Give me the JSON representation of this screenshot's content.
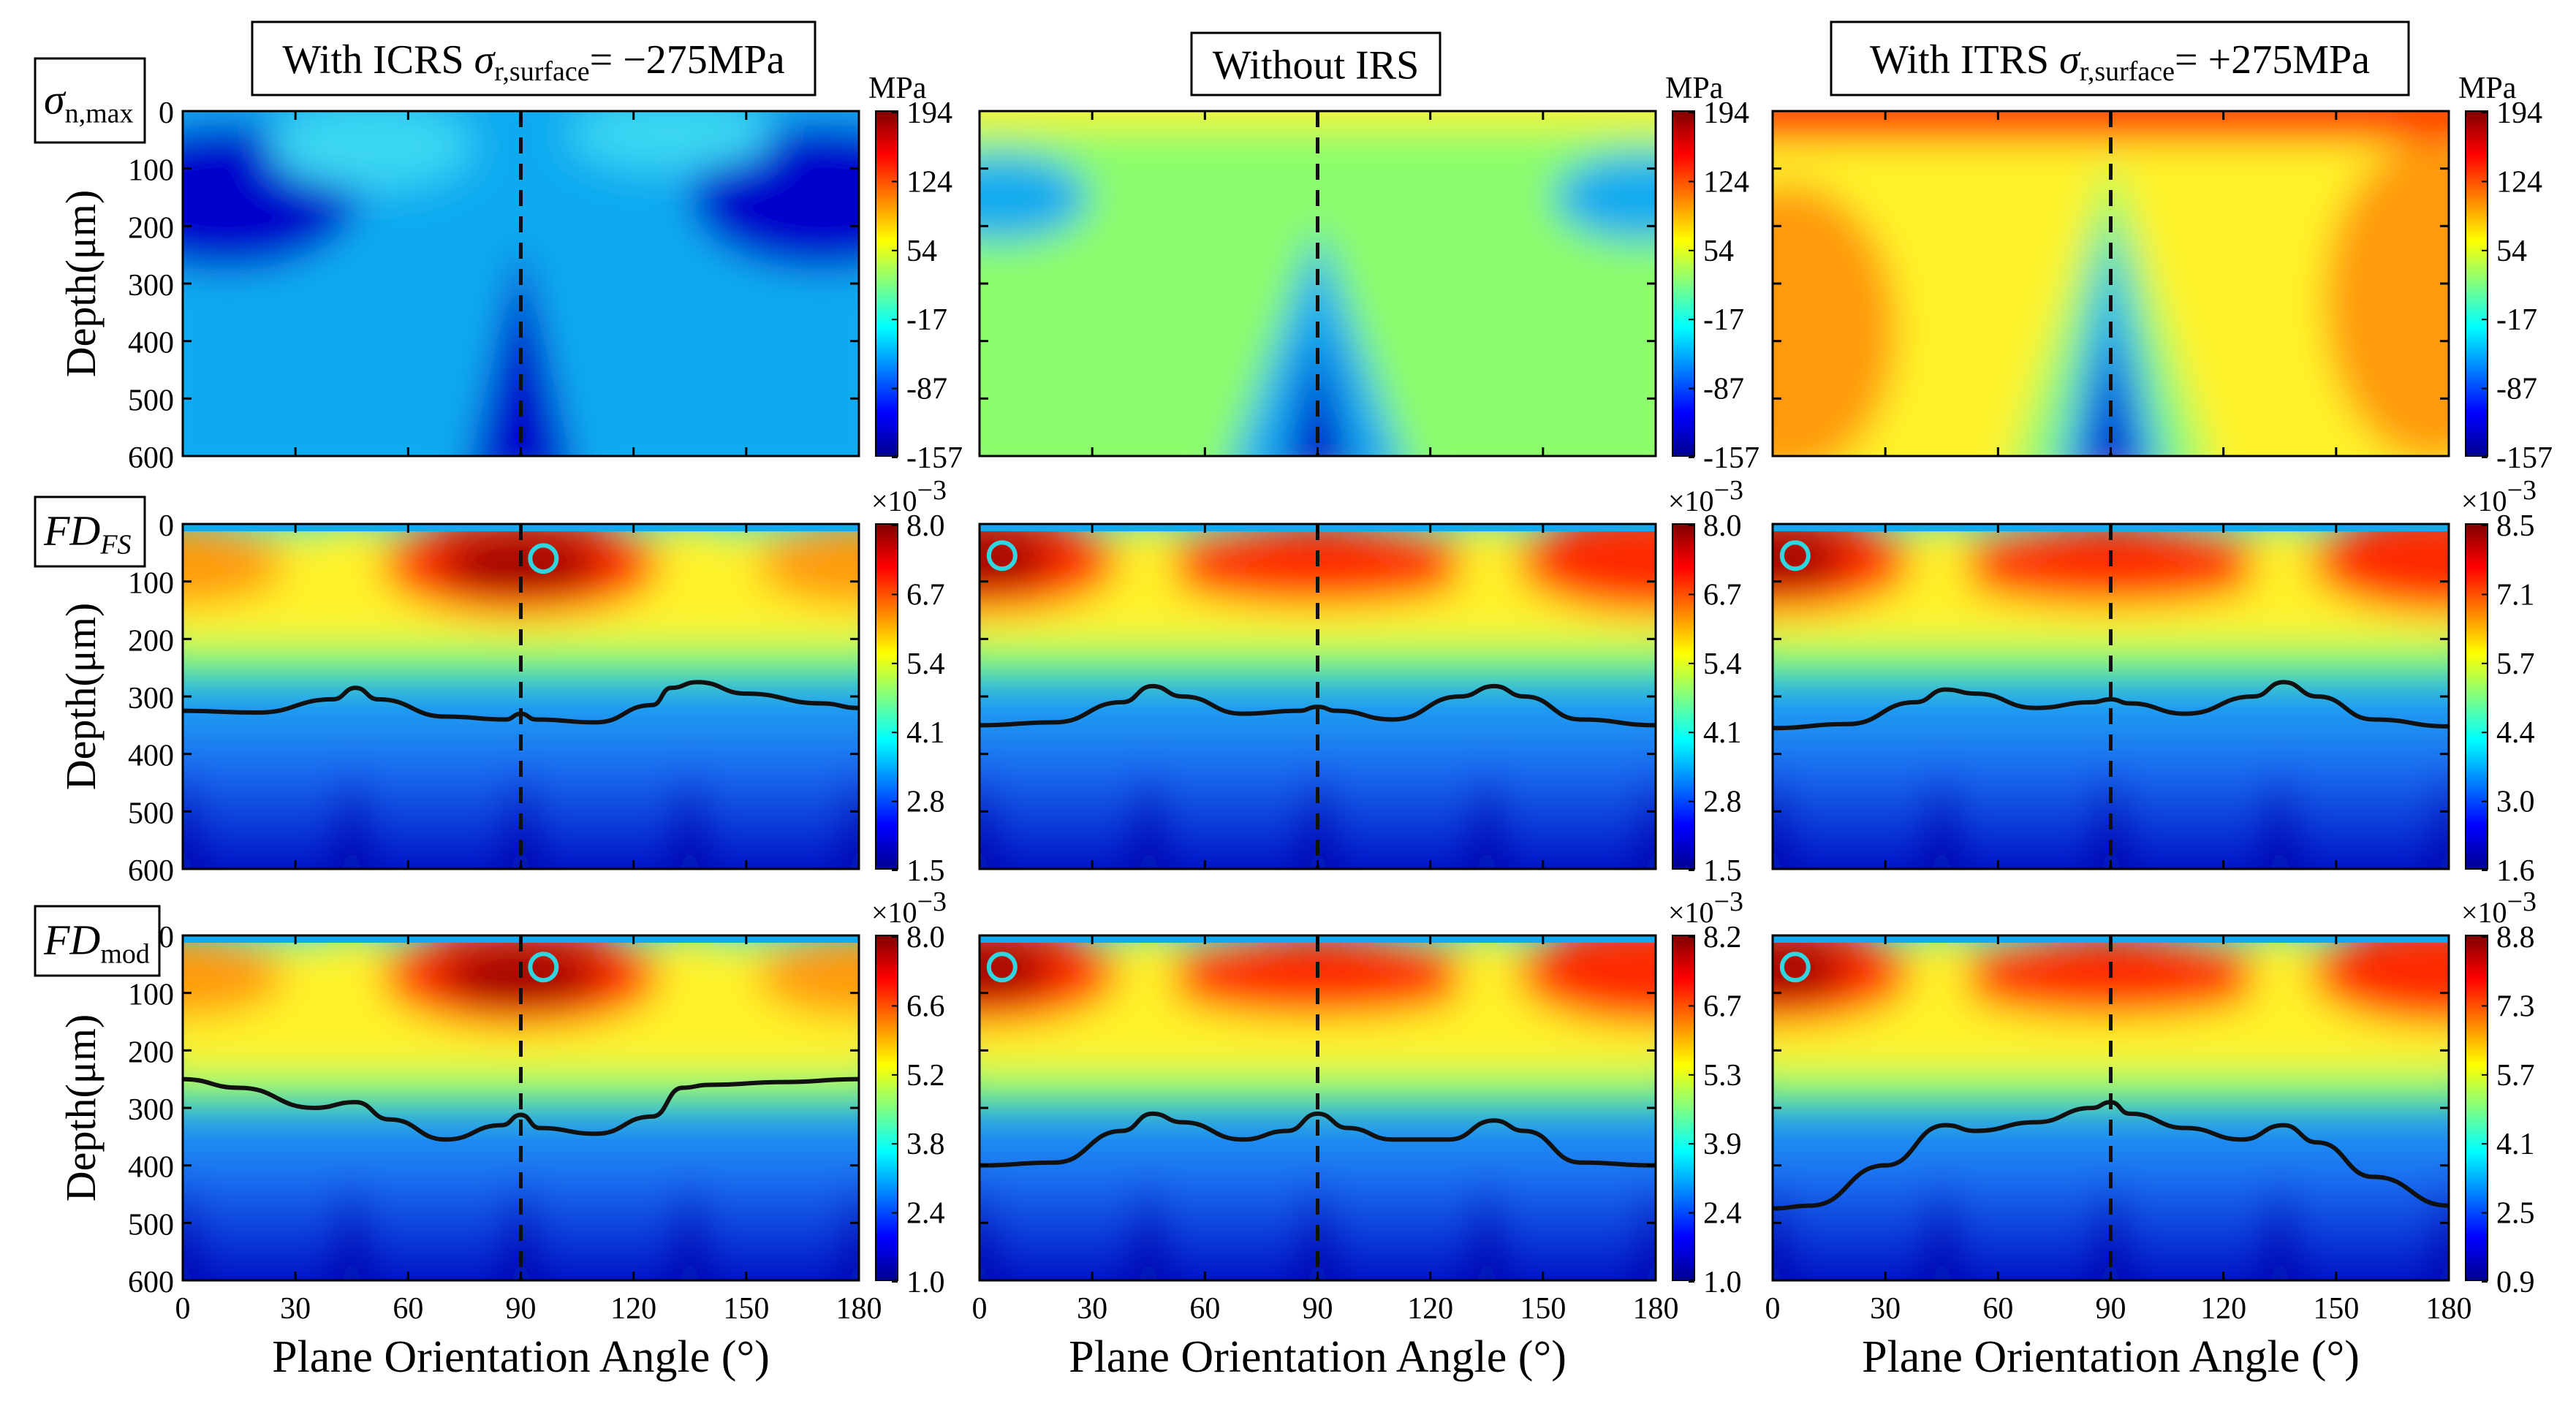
{
  "figure": {
    "columns": [
      {
        "title_prefix": "With ICRS ",
        "title_sym": "σ",
        "title_sub": "r,surface",
        "title_suffix": "= −275MPa"
      },
      {
        "title_prefix": "Without IRS",
        "title_sym": "",
        "title_sub": "",
        "title_suffix": ""
      },
      {
        "title_prefix": "With ITRS ",
        "title_sym": "σ",
        "title_sub": "r,surface",
        "title_suffix": "= +275MPa"
      }
    ],
    "rows": [
      {
        "label_main": "σ",
        "label_sub": "n,max",
        "colorbar_unit": "MPa"
      },
      {
        "label_main": "FD",
        "label_sub": "FS",
        "colorbar_unit": "×10",
        "colorbar_exp": "−3"
      },
      {
        "label_main": "FD",
        "label_sub": "mod",
        "colorbar_unit": "×10",
        "colorbar_exp": "−3"
      }
    ],
    "ylabel": "Depth(μm)",
    "xlabel": "Plane Orientation Angle (°)",
    "colors": {
      "marker": "#2fd6e0",
      "line": "#111111",
      "dashed": "#111111"
    }
  },
  "chart_data": [
    {
      "type": "heatmap",
      "row": 0,
      "col": 0,
      "title": "With ICRS σr,surface= −275MPa",
      "quantity": "σn,max",
      "unit": "MPa",
      "x_range": [
        0,
        180
      ],
      "y_range": [
        0,
        600
      ],
      "xticks": [
        "0",
        "30",
        "60",
        "90",
        "120",
        "150",
        "180"
      ],
      "yticks": [
        "0",
        "100",
        "200",
        "300",
        "400",
        "500",
        "600"
      ],
      "colorbar_ticks": [
        "194",
        "124",
        "54",
        "-17",
        "-87",
        "-157"
      ],
      "clim": [
        -157,
        194
      ],
      "dashed_x": 90
    },
    {
      "type": "heatmap",
      "row": 0,
      "col": 1,
      "title": "Without IRS",
      "quantity": "σn,max",
      "unit": "MPa",
      "x_range": [
        0,
        180
      ],
      "y_range": [
        0,
        600
      ],
      "colorbar_ticks": [
        "194",
        "124",
        "54",
        "-17",
        "-87",
        "-157"
      ],
      "clim": [
        -157,
        194
      ],
      "dashed_x": 90
    },
    {
      "type": "heatmap",
      "row": 0,
      "col": 2,
      "title": "With ITRS σr,surface= +275MPa",
      "quantity": "σn,max",
      "unit": "MPa",
      "x_range": [
        0,
        180
      ],
      "y_range": [
        0,
        600
      ],
      "colorbar_ticks": [
        "194",
        "124",
        "54",
        "-17",
        "-87",
        "-157"
      ],
      "clim": [
        -157,
        194
      ],
      "dashed_x": 90
    },
    {
      "type": "heatmap",
      "row": 1,
      "col": 0,
      "quantity": "FD_FS",
      "unit": "×10^-3",
      "colorbar_ticks": [
        "8.0",
        "6.7",
        "5.4",
        "4.1",
        "2.8",
        "1.5"
      ],
      "clim": [
        1.5,
        8.0
      ],
      "dashed_x": 90,
      "max_marker": {
        "x": 96,
        "depth": 60
      },
      "contour_line": {
        "x": [
          0,
          20,
          40,
          46,
          52,
          70,
          86,
          90,
          94,
          110,
          125,
          130,
          137,
          150,
          170,
          180
        ],
        "depth": [
          325,
          328,
          305,
          285,
          305,
          335,
          340,
          330,
          340,
          345,
          315,
          285,
          275,
          295,
          312,
          320
        ]
      }
    },
    {
      "type": "heatmap",
      "row": 1,
      "col": 1,
      "quantity": "FD_FS",
      "unit": "×10^-3",
      "colorbar_ticks": [
        "8.0",
        "6.7",
        "5.4",
        "4.1",
        "2.8",
        "1.5"
      ],
      "clim": [
        1.5,
        8.0
      ],
      "dashed_x": 90,
      "max_marker": {
        "x": 6,
        "depth": 55
      },
      "contour_line": {
        "x": [
          0,
          20,
          38,
          46,
          54,
          70,
          85,
          90,
          95,
          110,
          128,
          137,
          145,
          160,
          180
        ],
        "depth": [
          350,
          345,
          310,
          282,
          300,
          330,
          325,
          318,
          325,
          340,
          300,
          282,
          300,
          340,
          350
        ]
      }
    },
    {
      "type": "heatmap",
      "row": 1,
      "col": 2,
      "quantity": "FD_FS",
      "unit": "×10^-3",
      "colorbar_ticks": [
        "8.5",
        "7.1",
        "5.7",
        "4.4",
        "3.0",
        "1.6"
      ],
      "clim": [
        1.6,
        8.5
      ],
      "dashed_x": 90,
      "max_marker": {
        "x": 6,
        "depth": 55
      },
      "contour_line": {
        "x": [
          0,
          20,
          38,
          46,
          54,
          70,
          85,
          90,
          95,
          110,
          128,
          136,
          145,
          160,
          180
        ],
        "depth": [
          355,
          348,
          310,
          288,
          295,
          320,
          310,
          305,
          312,
          330,
          300,
          275,
          300,
          340,
          352
        ]
      }
    },
    {
      "type": "heatmap",
      "row": 2,
      "col": 0,
      "quantity": "FD_mod",
      "unit": "×10^-3",
      "colorbar_ticks": [
        "8.0",
        "6.6",
        "5.2",
        "3.8",
        "2.4",
        "1.0"
      ],
      "clim": [
        1.0,
        8.0
      ],
      "dashed_x": 90,
      "max_marker": {
        "x": 96,
        "depth": 55
      },
      "contour_line": {
        "x": [
          0,
          15,
          35,
          46,
          55,
          70,
          85,
          90,
          95,
          110,
          125,
          133,
          140,
          160,
          180
        ],
        "depth": [
          250,
          265,
          300,
          290,
          320,
          355,
          330,
          312,
          335,
          345,
          315,
          265,
          260,
          255,
          250
        ]
      }
    },
    {
      "type": "heatmap",
      "row": 2,
      "col": 1,
      "quantity": "FD_mod",
      "unit": "×10^-3",
      "colorbar_ticks": [
        "8.2",
        "6.7",
        "5.3",
        "3.9",
        "2.4",
        "1.0"
      ],
      "clim": [
        1.0,
        8.2
      ],
      "dashed_x": 90,
      "max_marker": {
        "x": 6,
        "depth": 55
      },
      "contour_line": {
        "x": [
          0,
          20,
          38,
          46,
          54,
          70,
          82,
          90,
          98,
          110,
          125,
          137,
          145,
          160,
          180
        ],
        "depth": [
          400,
          395,
          340,
          310,
          325,
          355,
          340,
          310,
          335,
          355,
          355,
          322,
          340,
          395,
          400
        ]
      }
    },
    {
      "type": "heatmap",
      "row": 2,
      "col": 2,
      "quantity": "FD_mod",
      "unit": "×10^-3",
      "colorbar_ticks": [
        "8.8",
        "7.3",
        "5.7",
        "4.1",
        "2.5",
        "0.9"
      ],
      "clim": [
        0.9,
        8.8
      ],
      "dashed_x": 90,
      "max_marker": {
        "x": 6,
        "depth": 55
      },
      "contour_line": {
        "x": [
          0,
          10,
          30,
          46,
          54,
          70,
          85,
          90,
          95,
          110,
          125,
          136,
          145,
          160,
          180
        ],
        "depth": [
          475,
          470,
          400,
          330,
          340,
          325,
          300,
          290,
          310,
          335,
          355,
          330,
          360,
          420,
          470
        ]
      }
    }
  ]
}
